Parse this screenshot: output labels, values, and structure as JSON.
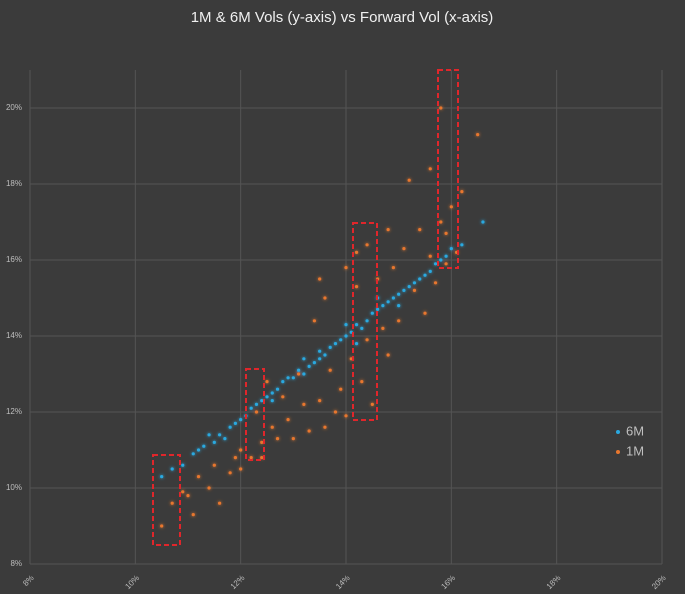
{
  "chart_data": {
    "type": "scatter",
    "title": "1M & 6M Vols (y-axis) vs Forward Vol  (x-axis)",
    "xlim": [
      8,
      20
    ],
    "ylim": [
      8,
      21
    ],
    "xticks": [
      {
        "value": 8,
        "label": "8%"
      },
      {
        "value": 10,
        "label": "10%"
      },
      {
        "value": 12,
        "label": "12%"
      },
      {
        "value": 14,
        "label": "14%"
      },
      {
        "value": 16,
        "label": "16%"
      },
      {
        "value": 18,
        "label": "18%"
      },
      {
        "value": 20,
        "label": "20%"
      }
    ],
    "yticks": [
      {
        "value": 8,
        "label": "8%"
      },
      {
        "value": 10,
        "label": "10%"
      },
      {
        "value": 12,
        "label": "12%"
      },
      {
        "value": 14,
        "label": "14%"
      },
      {
        "value": 16,
        "label": "16%"
      },
      {
        "value": 18,
        "label": "18%"
      },
      {
        "value": 20,
        "label": "20%"
      }
    ],
    "grid": true,
    "legend": "right",
    "series": [
      {
        "name": "6M",
        "color": "#2aa9e0",
        "x": [
          10.5,
          10.7,
          10.9,
          11.1,
          11.2,
          11.3,
          11.5,
          11.6,
          11.7,
          11.8,
          11.9,
          12.0,
          12.1,
          12.2,
          12.3,
          12.4,
          12.5,
          12.6,
          12.7,
          12.8,
          12.9,
          13.0,
          13.1,
          13.2,
          13.3,
          13.4,
          13.5,
          13.6,
          13.7,
          13.8,
          13.9,
          14.0,
          14.1,
          14.2,
          14.3,
          14.4,
          14.5,
          14.6,
          14.7,
          14.8,
          14.9,
          15.0,
          15.1,
          15.2,
          15.3,
          15.4,
          15.5,
          15.6,
          15.7,
          15.8,
          15.9,
          16.0,
          16.2,
          16.6,
          13.5,
          14.2,
          14.0,
          13.2,
          12.6,
          15.0,
          14.6,
          11.4
        ],
        "values": [
          10.3,
          10.5,
          10.6,
          10.9,
          11.0,
          11.1,
          11.2,
          11.4,
          11.3,
          11.6,
          11.7,
          11.8,
          11.9,
          12.1,
          12.2,
          12.3,
          12.4,
          12.5,
          12.6,
          12.8,
          12.9,
          12.9,
          13.1,
          13.0,
          13.2,
          13.3,
          13.4,
          13.5,
          13.7,
          13.8,
          13.9,
          14.0,
          14.1,
          14.3,
          14.2,
          14.4,
          14.6,
          14.7,
          14.8,
          14.9,
          15.0,
          15.1,
          15.2,
          15.3,
          15.4,
          15.5,
          15.6,
          15.7,
          15.9,
          16.0,
          16.1,
          16.3,
          16.4,
          17.0,
          13.6,
          13.8,
          14.3,
          13.4,
          12.3,
          14.8,
          15.0,
          11.4
        ]
      },
      {
        "name": "1M",
        "color": "#e8772e",
        "x": [
          10.5,
          10.7,
          10.9,
          11.1,
          11.2,
          11.4,
          11.5,
          11.6,
          11.8,
          11.9,
          12.0,
          12.2,
          12.3,
          12.4,
          12.5,
          12.6,
          12.7,
          12.8,
          12.9,
          13.0,
          13.1,
          13.2,
          13.3,
          13.4,
          13.5,
          13.6,
          13.6,
          13.7,
          13.8,
          13.9,
          14.0,
          14.0,
          14.1,
          14.2,
          14.3,
          14.4,
          14.4,
          14.5,
          14.6,
          14.7,
          14.8,
          14.8,
          14.9,
          15.0,
          15.1,
          15.2,
          15.3,
          15.4,
          15.5,
          15.6,
          15.7,
          15.8,
          15.9,
          16.0,
          16.1,
          16.2,
          16.5,
          15.8,
          15.9,
          15.6,
          14.2,
          13.5,
          12.4,
          12.0,
          11.0
        ],
        "values": [
          9.0,
          9.6,
          9.9,
          9.3,
          10.3,
          10.0,
          10.6,
          9.6,
          10.4,
          10.8,
          11.0,
          10.8,
          12.0,
          11.2,
          12.8,
          11.6,
          11.3,
          12.4,
          11.8,
          11.3,
          13.0,
          12.2,
          11.5,
          14.4,
          12.3,
          11.6,
          15.0,
          13.1,
          12.0,
          12.6,
          15.8,
          11.9,
          13.4,
          15.3,
          12.8,
          16.4,
          13.9,
          12.2,
          15.5,
          14.2,
          16.8,
          13.5,
          15.8,
          14.4,
          16.3,
          18.1,
          15.2,
          16.8,
          14.6,
          16.1,
          15.4,
          17.0,
          15.9,
          17.4,
          16.2,
          17.8,
          19.3,
          20.0,
          16.7,
          18.4,
          16.2,
          15.5,
          10.8,
          10.5,
          9.8
        ]
      }
    ]
  }
}
